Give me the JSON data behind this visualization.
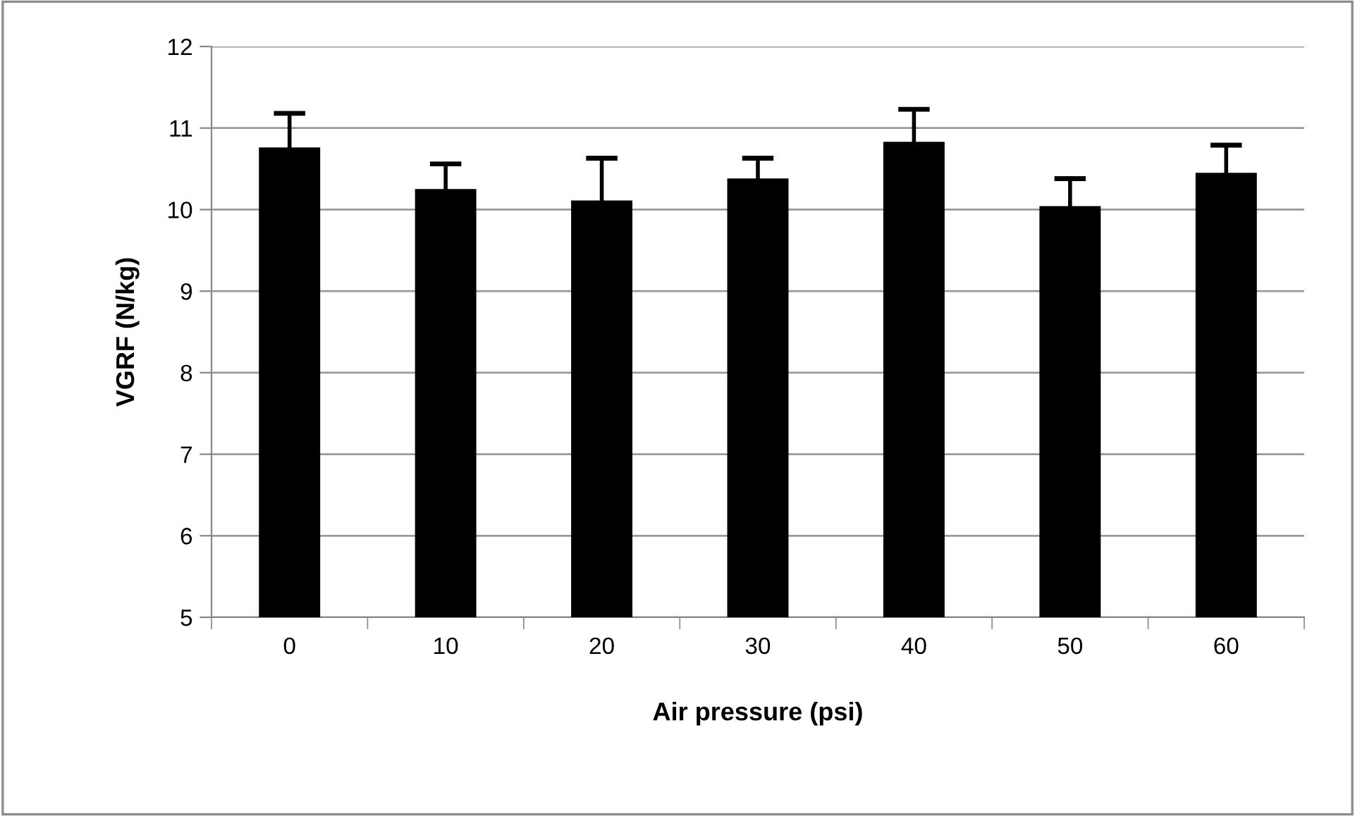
{
  "chart_data": {
    "type": "bar",
    "xlabel": "Air pressure (psi)",
    "ylabel": "VGRF (N/kg)",
    "categories": [
      "0",
      "10",
      "20",
      "30",
      "40",
      "50",
      "60"
    ],
    "values": [
      10.75,
      10.24,
      10.1,
      10.37,
      10.82,
      10.03,
      10.44
    ],
    "errors": [
      0.43,
      0.32,
      0.53,
      0.26,
      0.41,
      0.35,
      0.35
    ],
    "color": "#000000",
    "ylim": [
      5,
      12
    ],
    "yticks": [
      5,
      6,
      7,
      8,
      9,
      10,
      11,
      12
    ],
    "grid": "y"
  }
}
